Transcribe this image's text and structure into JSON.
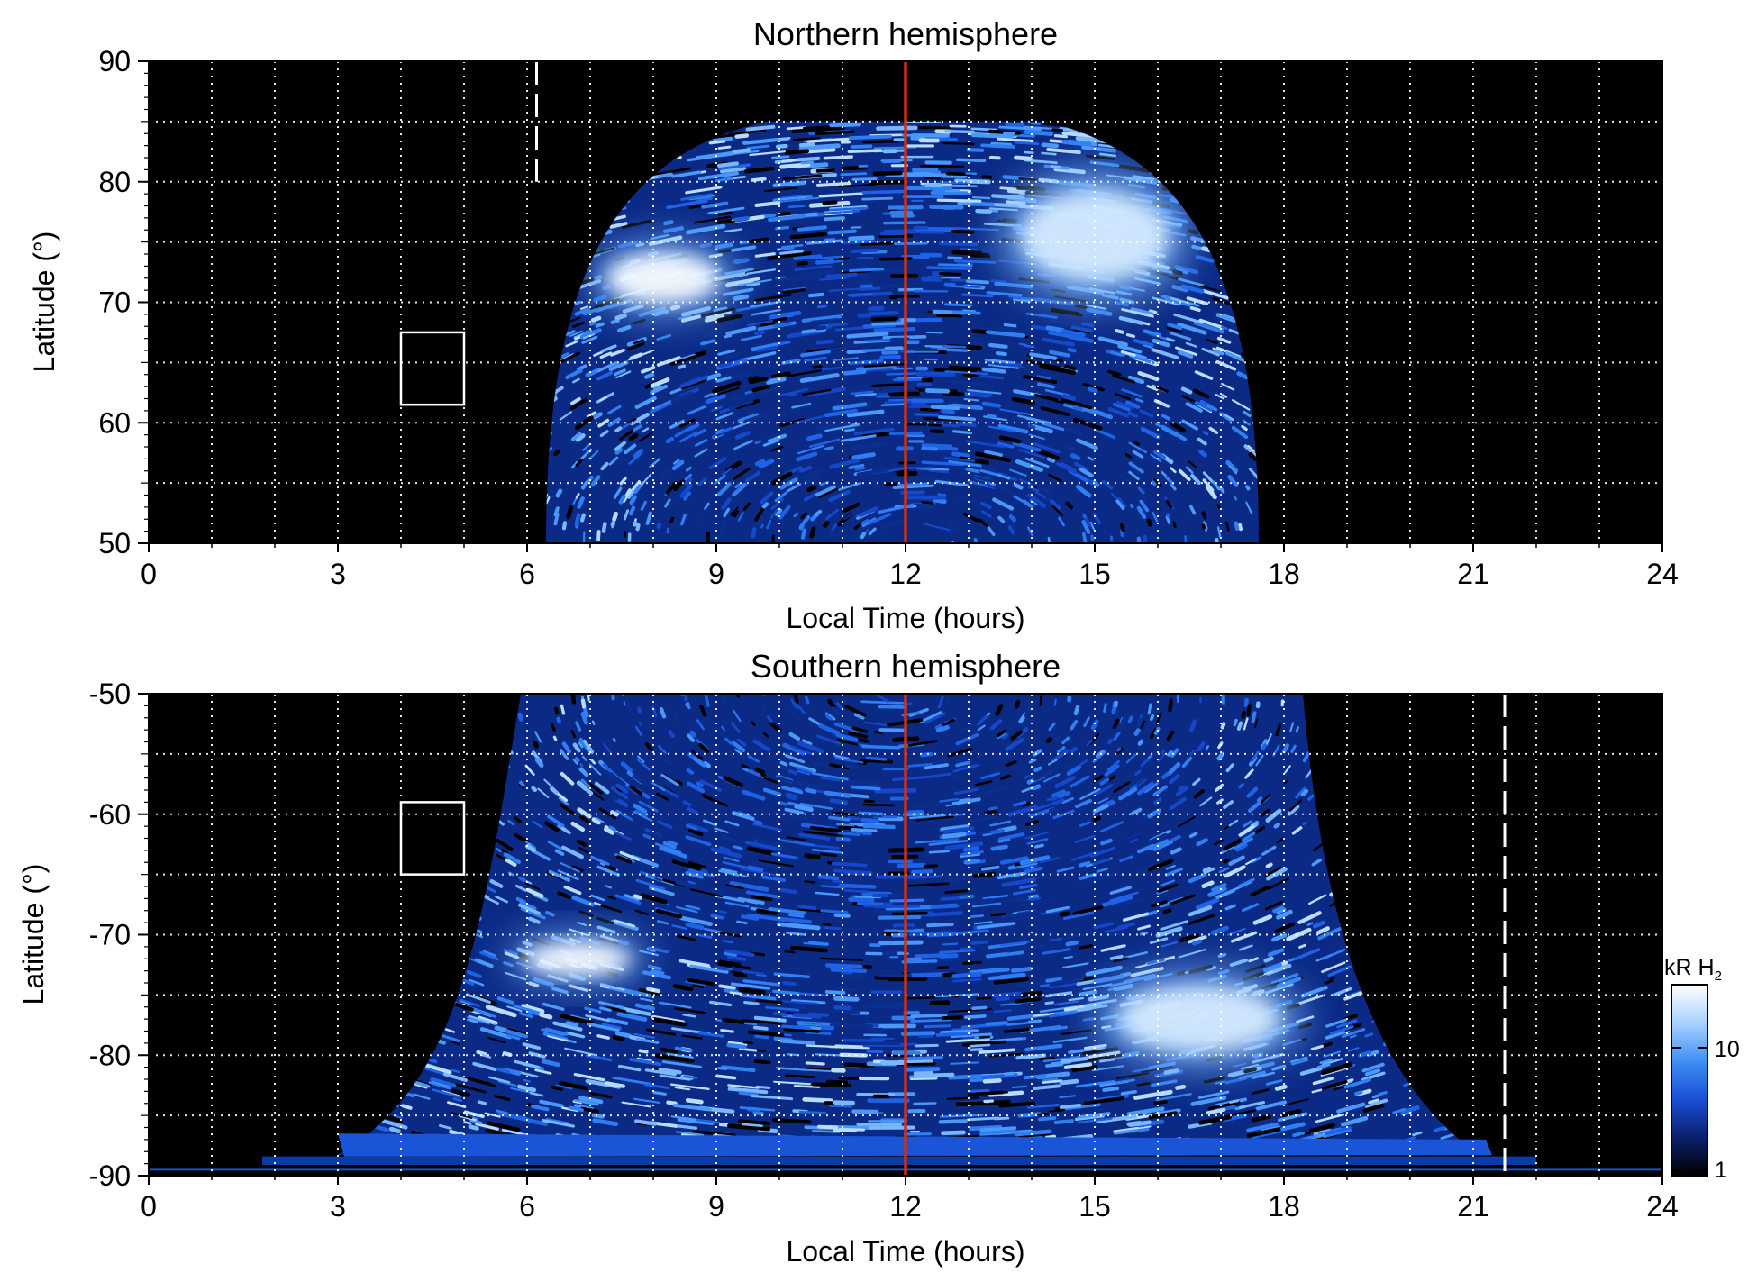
{
  "chart_data": [
    {
      "type": "heatmap",
      "title": "Northern hemisphere",
      "xlabel": "Local Time (hours)",
      "ylabel": "Latitude (°)",
      "xlim": [
        0,
        24
      ],
      "ylim": [
        50,
        90
      ],
      "x_ticks": [
        "0",
        "3",
        "6",
        "9",
        "12",
        "15",
        "18",
        "21",
        "24"
      ],
      "y_ticks": [
        "50",
        "60",
        "70",
        "80",
        "90"
      ],
      "grid": true,
      "emission_extent": {
        "x_start": 6.3,
        "x_end": 17.6,
        "lat_top": 85
      },
      "bright_regions": [
        {
          "x": [
            7.0,
            9.3
          ],
          "lat": [
            69,
            75
          ],
          "level": "brightest"
        },
        {
          "x": [
            13.5,
            16.5
          ],
          "lat": [
            70,
            81
          ],
          "level": "bright"
        }
      ],
      "reference_line": {
        "x": 12,
        "color": "#d03010"
      },
      "dashed_line": {
        "x": 6.15
      },
      "box": {
        "x": [
          4,
          5
        ],
        "lat": [
          61.5,
          67.5
        ]
      }
    },
    {
      "type": "heatmap",
      "title": "Southern hemisphere",
      "xlabel": "Local Time (hours)",
      "ylabel": "Latitude (°)",
      "xlim": [
        0,
        24
      ],
      "ylim": [
        -90,
        -50
      ],
      "x_ticks": [
        "0",
        "3",
        "6",
        "9",
        "12",
        "15",
        "18",
        "21",
        "24"
      ],
      "y_ticks": [
        "-50",
        "-60",
        "-70",
        "-80",
        "-90"
      ],
      "grid": true,
      "emission_extent": {
        "x_start": 5.6,
        "x_end": 18.4,
        "lat_bottom": -89
      },
      "bright_regions": [
        {
          "x": [
            5.7,
            7.9
          ],
          "lat": [
            -74,
            -70
          ],
          "level": "brightest"
        },
        {
          "x": [
            15.0,
            18.3
          ],
          "lat": [
            -81,
            -73
          ],
          "level": "bright"
        }
      ],
      "reference_line": {
        "x": 12,
        "color": "#d03010"
      },
      "dashed_line": {
        "x": 21.5
      },
      "box": {
        "x": [
          4,
          5
        ],
        "lat": [
          -65,
          -59
        ]
      }
    }
  ],
  "colorbar": {
    "title": "kR H",
    "subscript": "2",
    "tick_labels": [
      "10",
      "1"
    ],
    "scale": "log",
    "colors": [
      "#000000",
      "#0a1f6b",
      "#1a4fd6",
      "#3f8ff5",
      "#a9d2ff",
      "#ffffff"
    ]
  },
  "colors": {
    "background": "#000000",
    "grid": "#ffffff",
    "reference_line": "#d03010"
  }
}
